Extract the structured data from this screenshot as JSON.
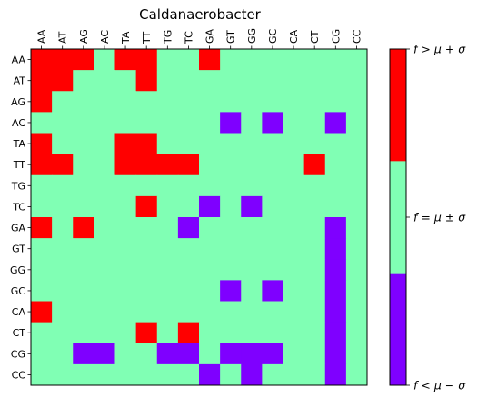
{
  "chart_data": {
    "type": "heatmap",
    "title": "Caldanaerobacter",
    "x_labels": [
      "AA",
      "AT",
      "AG",
      "AC",
      "TA",
      "TT",
      "TG",
      "TC",
      "GA",
      "GT",
      "GG",
      "GC",
      "CA",
      "CT",
      "CG",
      "CC"
    ],
    "y_labels": [
      "AA",
      "AT",
      "AG",
      "AC",
      "TA",
      "TT",
      "TG",
      "TC",
      "GA",
      "GT",
      "GG",
      "GC",
      "CA",
      "CT",
      "CG",
      "CC"
    ],
    "legend": {
      "position": "right",
      "levels": [
        {
          "value": -1,
          "label": "f < μ − σ",
          "color": "#7f00ff"
        },
        {
          "value": 0,
          "label": "f = μ ± σ",
          "color": "#80ffb4"
        },
        {
          "value": 1,
          "label": "f > μ + σ",
          "color": "#ff0000"
        }
      ]
    },
    "values": [
      [
        1,
        1,
        1,
        0,
        1,
        1,
        0,
        0,
        1,
        0,
        0,
        0,
        0,
        0,
        0,
        0
      ],
      [
        1,
        1,
        0,
        0,
        0,
        1,
        0,
        0,
        0,
        0,
        0,
        0,
        0,
        0,
        0,
        0
      ],
      [
        1,
        0,
        0,
        0,
        0,
        0,
        0,
        0,
        0,
        0,
        0,
        0,
        0,
        0,
        0,
        0
      ],
      [
        0,
        0,
        0,
        0,
        0,
        0,
        0,
        0,
        0,
        -1,
        0,
        -1,
        0,
        0,
        -1,
        0
      ],
      [
        1,
        0,
        0,
        0,
        1,
        1,
        0,
        0,
        0,
        0,
        0,
        0,
        0,
        0,
        0,
        0
      ],
      [
        1,
        1,
        0,
        0,
        1,
        1,
        1,
        1,
        0,
        0,
        0,
        0,
        0,
        1,
        0,
        0
      ],
      [
        0,
        0,
        0,
        0,
        0,
        0,
        0,
        0,
        0,
        0,
        0,
        0,
        0,
        0,
        0,
        0
      ],
      [
        0,
        0,
        0,
        0,
        0,
        1,
        0,
        0,
        -1,
        0,
        -1,
        0,
        0,
        0,
        0,
        0
      ],
      [
        1,
        0,
        1,
        0,
        0,
        0,
        0,
        -1,
        0,
        0,
        0,
        0,
        0,
        0,
        -1,
        0
      ],
      [
        0,
        0,
        0,
        0,
        0,
        0,
        0,
        0,
        0,
        0,
        0,
        0,
        0,
        0,
        -1,
        0
      ],
      [
        0,
        0,
        0,
        0,
        0,
        0,
        0,
        0,
        0,
        0,
        0,
        0,
        0,
        0,
        -1,
        0
      ],
      [
        0,
        0,
        0,
        0,
        0,
        0,
        0,
        0,
        0,
        -1,
        0,
        -1,
        0,
        0,
        -1,
        0
      ],
      [
        1,
        0,
        0,
        0,
        0,
        0,
        0,
        0,
        0,
        0,
        0,
        0,
        0,
        0,
        -1,
        0
      ],
      [
        0,
        0,
        0,
        0,
        0,
        1,
        0,
        1,
        0,
        0,
        0,
        0,
        0,
        0,
        -1,
        0
      ],
      [
        0,
        0,
        -1,
        -1,
        0,
        0,
        -1,
        -1,
        0,
        -1,
        -1,
        -1,
        0,
        0,
        -1,
        0
      ],
      [
        0,
        0,
        0,
        0,
        0,
        0,
        0,
        0,
        -1,
        0,
        -1,
        0,
        0,
        0,
        -1,
        0
      ]
    ]
  }
}
